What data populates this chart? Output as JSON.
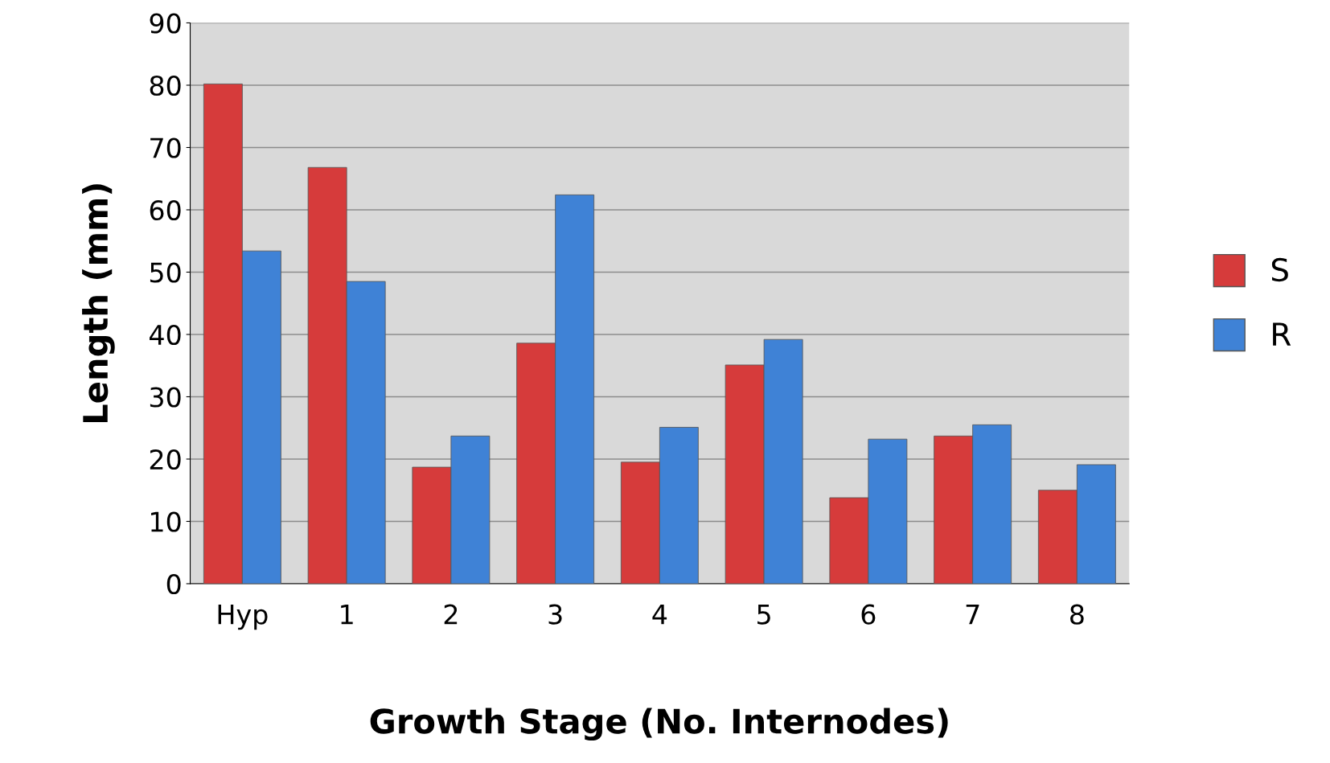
{
  "chart_data": {
    "type": "bar",
    "xlabel": "Growth Stage (No. Internodes)",
    "ylabel": "Length (mm)",
    "categories": [
      "Hyp",
      "1",
      "2",
      "3",
      "4",
      "5",
      "6",
      "7",
      "8"
    ],
    "series": [
      {
        "name": "S",
        "color": "#d63b3b",
        "values": [
          80.2,
          66.8,
          18.7,
          38.6,
          19.5,
          35.1,
          13.8,
          23.7,
          15.0
        ]
      },
      {
        "name": "R",
        "color": "#3f82d6",
        "values": [
          53.4,
          48.5,
          23.7,
          62.4,
          25.1,
          39.2,
          23.2,
          25.5,
          19.1
        ]
      }
    ],
    "ylim": [
      0,
      90
    ],
    "yticks": [
      0,
      10,
      20,
      30,
      40,
      50,
      60,
      70,
      80,
      90
    ],
    "grid": "y",
    "legend": "right"
  }
}
